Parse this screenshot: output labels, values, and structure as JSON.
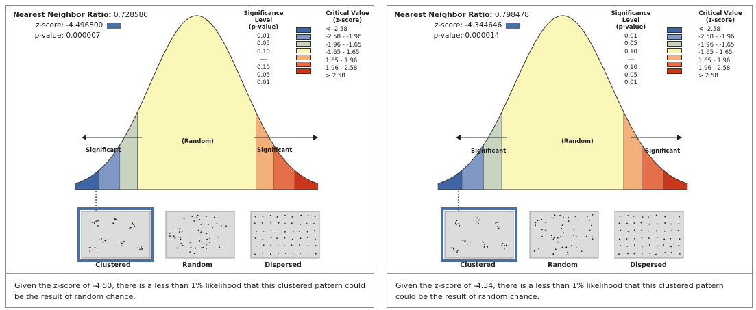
{
  "panels": [
    {
      "ratio_label": "Nearest Neighbor Ratio:",
      "ratio_value": "0.728580",
      "z_label": "z-score:",
      "z_value": "-4.496800",
      "p_label": "p-value:",
      "p_value": "0.000007",
      "sig_header_1": "Significance Level",
      "sig_header_2": "(p-value)",
      "crit_header_1": "Critical Value",
      "crit_header_2": "(z-score)",
      "sig_levels": [
        "0.01",
        "0.05",
        "0.10",
        "---",
        "0.10",
        "0.05",
        "0.01"
      ],
      "crit_values": [
        "< -2.58",
        "-2.58 - -1.96",
        "-1.96 - -1.65",
        "-1.65 - 1.65",
        "1.65 - 1.96",
        "1.96 - 2.58",
        "> 2.58"
      ],
      "swatch_colors": [
        "#3f64a3",
        "#7f99c4",
        "#c8d4c0",
        "#f9f5b0",
        "#f4b07a",
        "#e56f48",
        "#c8361c"
      ],
      "significant_left": "Significant",
      "random_label": "(Random)",
      "significant_right": "Significant",
      "patterns": [
        "Clustered",
        "Random",
        "Dispersed"
      ],
      "caption": "Given the z-score of -4.50, there is a less than 1% likelihood that this clustered pattern could be the result of random chance."
    },
    {
      "ratio_label": "Nearest Neighbor Ratio:",
      "ratio_value": "0.798478",
      "z_label": "z-score:",
      "z_value": "-4.344646",
      "p_label": "p-value:",
      "p_value": "0.000014",
      "sig_header_1": "Significance Level",
      "sig_header_2": "(p-value)",
      "crit_header_1": "Critical Value",
      "crit_header_2": "(z-score)",
      "sig_levels": [
        "0.01",
        "0.05",
        "0.10",
        "---",
        "0.10",
        "0.05",
        "0.01"
      ],
      "crit_values": [
        "< -2.58",
        "-2.58 - -1.96",
        "-1.96 - -1.65",
        "-1.65 - 1.65",
        "1.65 - 1.96",
        "1.96 - 2.58",
        "> 2.58"
      ],
      "swatch_colors": [
        "#3f64a3",
        "#7f99c4",
        "#c8d4c0",
        "#f9f5b0",
        "#f4b07a",
        "#e56f48",
        "#c8361c"
      ],
      "significant_left": "Significant",
      "random_label": "(Random)",
      "significant_right": "Significant",
      "patterns": [
        "Clustered",
        "Random",
        "Dispersed"
      ],
      "caption": "Given the z-score of -4.34, there is a less than 1% likelihood that this clustered pattern could be the result of random chance."
    }
  ],
  "colors": {
    "curve_center": "#fbf7b8",
    "neg_deep": "#3f64a3",
    "neg_mid": "#7f99c4",
    "neg_light": "#c8d4c0",
    "pos_light": "#f4b07a",
    "pos_mid": "#e56f48",
    "pos_deep": "#c8361c",
    "highlight_border": "#4b6fa3",
    "pattern_fill": "#dcdcdc"
  },
  "icons": {
    "arrow_left": "arrow-left-icon",
    "arrow_right": "arrow-right-icon"
  }
}
